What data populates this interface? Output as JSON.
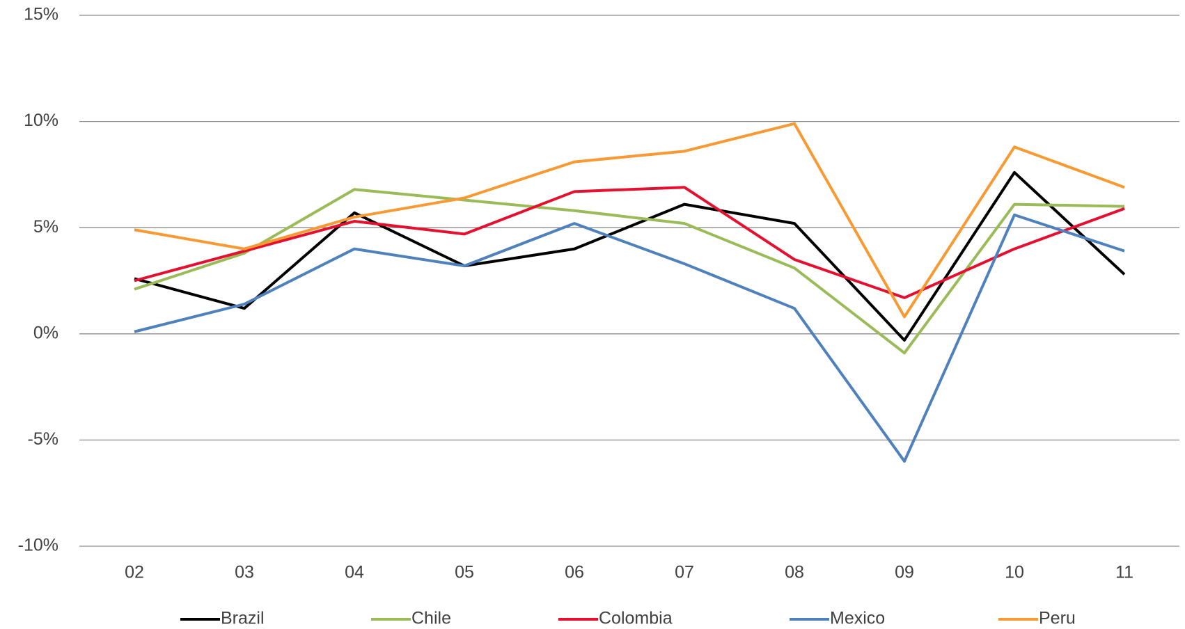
{
  "chart_data": {
    "type": "line",
    "categories": [
      "02",
      "03",
      "04",
      "05",
      "06",
      "07",
      "08",
      "09",
      "10",
      "11"
    ],
    "series": [
      {
        "name": "Brazil",
        "color": "#000000",
        "values": [
          2.6,
          1.2,
          5.7,
          3.2,
          4.0,
          6.1,
          5.2,
          -0.3,
          7.6,
          2.8
        ]
      },
      {
        "name": "Chile",
        "color": "#9bbb59",
        "values": [
          2.1,
          3.8,
          6.8,
          6.3,
          5.8,
          5.2,
          3.1,
          -0.9,
          6.1,
          6.0
        ]
      },
      {
        "name": "Colombia",
        "color": "#e4102f",
        "values": [
          2.5,
          3.9,
          5.3,
          4.7,
          6.7,
          6.9,
          3.5,
          1.7,
          4.0,
          5.9
        ]
      },
      {
        "name": "Mexico",
        "color": "#4f81bd",
        "values": [
          0.1,
          1.4,
          4.0,
          3.2,
          5.2,
          3.3,
          1.2,
          -6.0,
          5.6,
          3.9
        ]
      },
      {
        "name": "Peru",
        "color": "#f79a34",
        "values": [
          4.9,
          4.0,
          5.5,
          6.4,
          8.1,
          8.6,
          9.9,
          0.8,
          8.8,
          6.9
        ]
      }
    ],
    "ylim": [
      -10,
      15
    ],
    "yticks": [
      {
        "value": -10,
        "label": "-10%"
      },
      {
        "value": -5,
        "label": "-5%"
      },
      {
        "value": 0,
        "label": "0%"
      },
      {
        "value": 5,
        "label": "5%"
      },
      {
        "value": 10,
        "label": "10%"
      },
      {
        "value": 15,
        "label": "15%"
      }
    ],
    "grid": true,
    "legend": "bottom"
  }
}
